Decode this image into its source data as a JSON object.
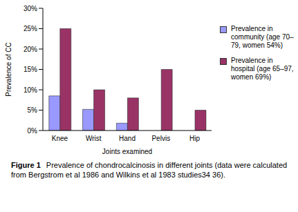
{
  "chart_data": {
    "type": "bar",
    "categories": [
      "Knee",
      "Wrist",
      "Hand",
      "Pelvis",
      "Hip"
    ],
    "series": [
      {
        "name": "Prevalence in community (age 70–79, women 54%)",
        "color": "#9999ff",
        "values": [
          8.5,
          5.2,
          1.8,
          null,
          null
        ]
      },
      {
        "name": "Prevalence in hospital (age 65–97, women 69%)",
        "color": "#993366",
        "values": [
          25,
          10,
          8,
          15,
          5
        ]
      }
    ],
    "x_label": "Joints examined",
    "y_label": "Prevalence of CC",
    "ylim": [
      0,
      30
    ],
    "yticks": [
      {
        "value": 0,
        "label": "0%"
      },
      {
        "value": 5,
        "label": "5%"
      },
      {
        "value": 10,
        "label": "10%"
      },
      {
        "value": 15,
        "label": "15%"
      },
      {
        "value": 20,
        "label": "20%"
      },
      {
        "value": 25,
        "label": "25%"
      },
      {
        "value": 30,
        "label": "30%"
      }
    ],
    "grid": false,
    "legend": "right",
    "caption_label": "Figure 1",
    "caption": "Prevalence of chondrocalcinosis in different joints (data were calculated from Bergstrom et al 1986 and Wilkins et al 1983 studies34 36)."
  }
}
